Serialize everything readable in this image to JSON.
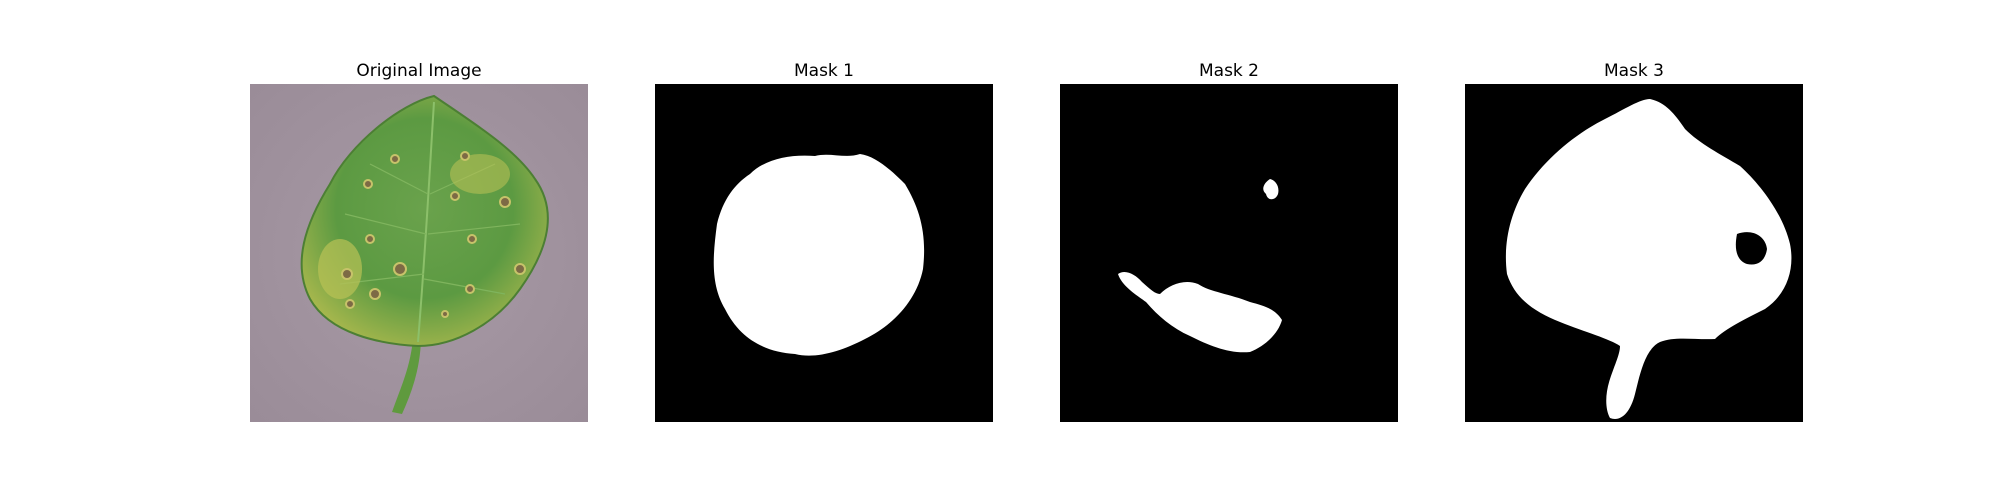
{
  "figure": {
    "panels": [
      {
        "title": "Original Image"
      },
      {
        "title": "Mask 1"
      },
      {
        "title": "Mask 2"
      },
      {
        "title": "Mask 3"
      }
    ]
  }
}
